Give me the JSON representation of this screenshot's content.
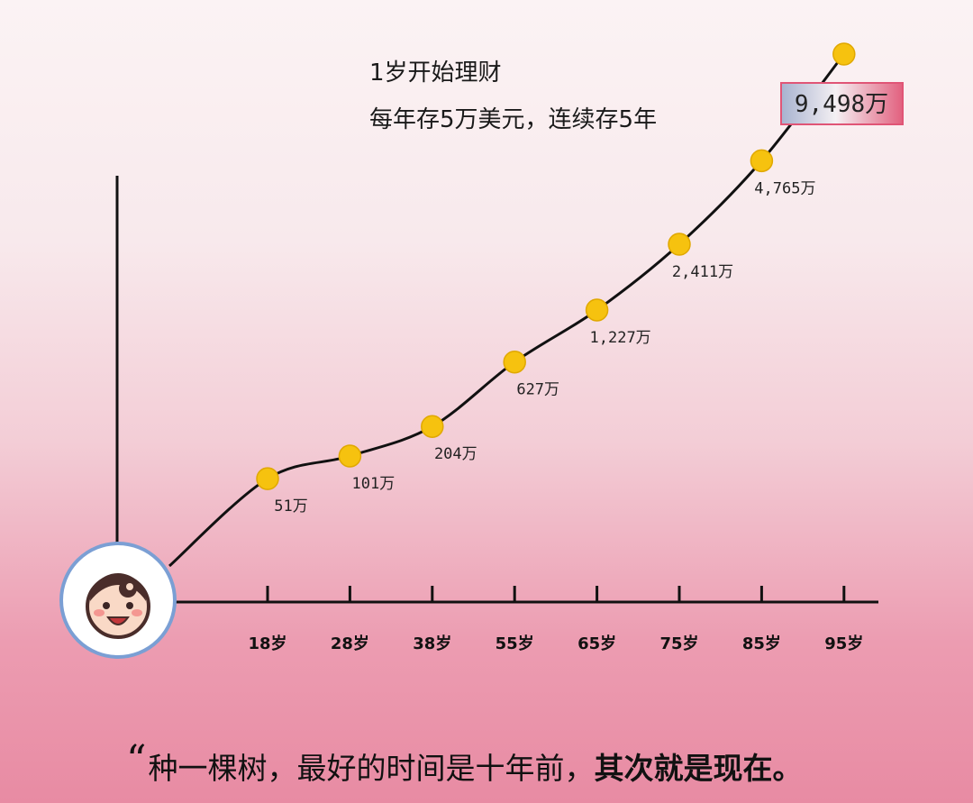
{
  "header": {
    "line1": "1岁开始理财",
    "line2": "每年存5万美元，连续存5年"
  },
  "footer": {
    "quote_mark": "“",
    "plain_text": "种一棵树，最好的时间是十年前，",
    "bold_text": "其次就是现在。"
  },
  "icons": {
    "baby": "baby-face-icon"
  },
  "colors": {
    "curve": "#111111",
    "point": "#f6c20f",
    "point_stroke": "#e0a800",
    "final_box_left": "#a9b4d0",
    "final_box_right": "#e46c86"
  },
  "chart_data": {
    "type": "line",
    "title": "",
    "xlabel": "",
    "ylabel": "",
    "grid": false,
    "categories": [
      "18岁",
      "28岁",
      "38岁",
      "55岁",
      "65岁",
      "75岁",
      "85岁",
      "95岁"
    ],
    "values": [
      51,
      101,
      204,
      627,
      1227,
      2411,
      4765,
      9498
    ],
    "value_labels": [
      "51万",
      "101万",
      "204万",
      "627万",
      "1,227万",
      "2,411万",
      "4,765万",
      "9,498万"
    ],
    "unit": "万"
  }
}
